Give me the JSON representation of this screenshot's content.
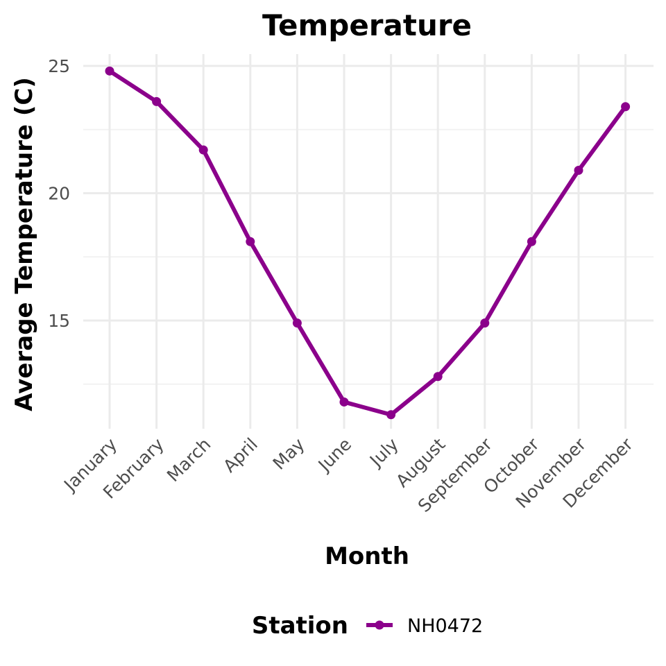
{
  "chart_data": {
    "type": "line",
    "title": "Temperature",
    "xlabel": "Month",
    "ylabel": "Average Temperature (C)",
    "categories": [
      "January",
      "February",
      "March",
      "April",
      "May",
      "June",
      "July",
      "August",
      "September",
      "October",
      "November",
      "December"
    ],
    "series": [
      {
        "name": "NH0472",
        "color": "#8B008B",
        "values": [
          24.8,
          23.6,
          21.7,
          18.1,
          14.9,
          11.8,
          11.3,
          12.8,
          14.9,
          18.1,
          20.9,
          23.4
        ]
      }
    ],
    "ylim": [
      10.5,
      25.9
    ],
    "yticks": [
      15,
      20,
      25
    ],
    "ytick_labels": [
      "15",
      "20",
      "25"
    ],
    "grid": true,
    "legend": {
      "title": "Station",
      "position": "bottom"
    }
  }
}
